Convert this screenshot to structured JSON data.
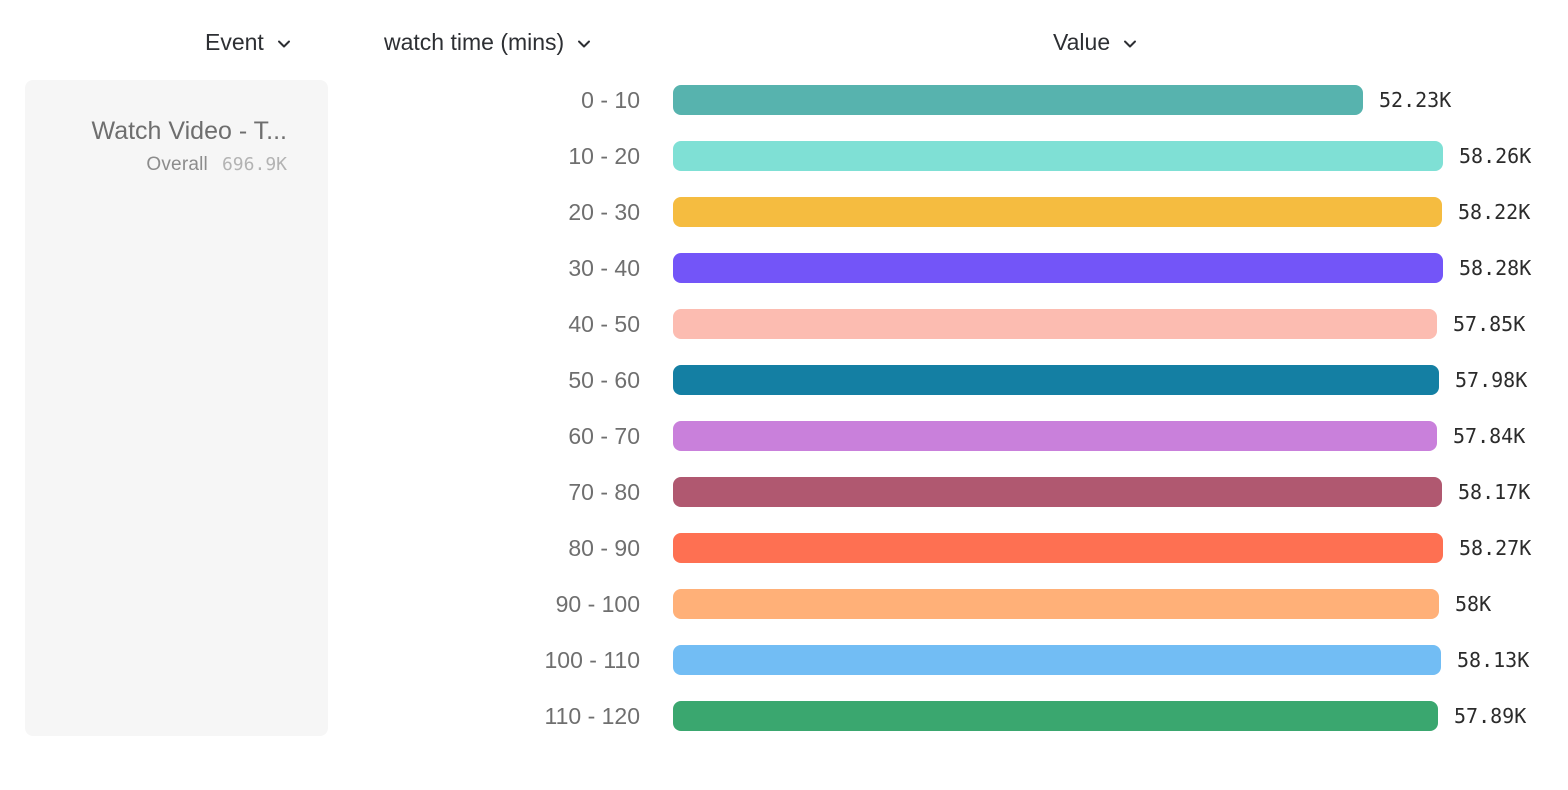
{
  "headers": {
    "event": {
      "label": "Event"
    },
    "breakdown": {
      "label": "watch time (mins)"
    },
    "value": {
      "label": "Value"
    }
  },
  "event_card": {
    "name": "Watch Video - T...",
    "overall_label": "Overall",
    "overall_value": "696.9K"
  },
  "chart_data": {
    "type": "bar",
    "orientation": "horizontal",
    "title": "",
    "xlabel": "Value",
    "ylabel": "watch time (mins)",
    "categories": [
      "0 - 10",
      "10 - 20",
      "20 - 30",
      "30 - 40",
      "40 - 50",
      "50 - 60",
      "60 - 70",
      "70 - 80",
      "80 - 90",
      "90 - 100",
      "100 - 110",
      "110 - 120"
    ],
    "values": [
      52230,
      58260,
      58220,
      58280,
      57850,
      57980,
      57840,
      58170,
      58270,
      58000,
      58130,
      57890
    ],
    "value_labels": [
      "52.23K",
      "58.26K",
      "58.22K",
      "58.28K",
      "57.85K",
      "57.98K",
      "57.84K",
      "58.17K",
      "58.27K",
      "58K",
      "58.13K",
      "57.89K"
    ],
    "colors": [
      "#57B3AE",
      "#7FE0D5",
      "#F5BC40",
      "#7355F8",
      "#FCBCB1",
      "#147FA3",
      "#C980DB",
      "#B05870",
      "#FE7052",
      "#FFB078",
      "#72BDF4",
      "#3AA76F"
    ],
    "xlim": [
      0,
      58280
    ],
    "grid": false,
    "legend": false,
    "colors_meta": {
      "header_text": "#2d2f33",
      "bucket_label_text": "#6f6f6f",
      "value_label_text": "#2b2b2b",
      "card_background": "#f6f6f6"
    }
  }
}
